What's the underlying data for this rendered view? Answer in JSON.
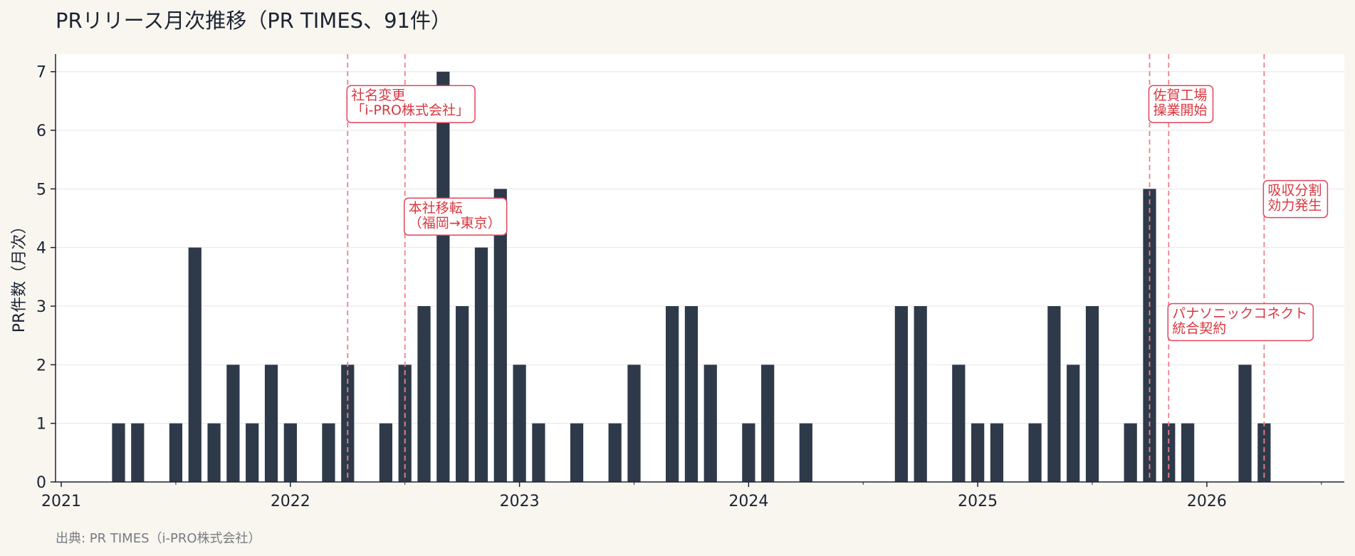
{
  "title": "PRリリース月次推移（PR TIMES、91件）",
  "source": "出典: PR TIMES（i-PRO株式会社）",
  "colors": {
    "bar": "#2e3a4a",
    "event": "#e0455a",
    "background": "#f9f6ef",
    "plot": "#ffffff"
  },
  "chart_data": {
    "type": "bar",
    "title": "PRリリース月次推移（PR TIMES、91件）",
    "xlabel": "",
    "ylabel": "PR件数（月次）",
    "ylim": [
      0,
      7.3
    ],
    "yticks": [
      "0",
      "1",
      "2",
      "3",
      "4",
      "5",
      "6",
      "7"
    ],
    "xticks": [
      "2021",
      "2022",
      "2023",
      "2024",
      "2025",
      "2026"
    ],
    "xlim": [
      "2021-01",
      "2026-08"
    ],
    "grid": "horizontal",
    "categories": [
      "2021-01",
      "2021-02",
      "2021-03",
      "2021-04",
      "2021-05",
      "2021-06",
      "2021-07",
      "2021-08",
      "2021-09",
      "2021-10",
      "2021-11",
      "2021-12",
      "2022-01",
      "2022-02",
      "2022-03",
      "2022-04",
      "2022-05",
      "2022-06",
      "2022-07",
      "2022-08",
      "2022-09",
      "2022-10",
      "2022-11",
      "2022-12",
      "2023-01",
      "2023-02",
      "2023-03",
      "2023-04",
      "2023-05",
      "2023-06",
      "2023-07",
      "2023-08",
      "2023-09",
      "2023-10",
      "2023-11",
      "2023-12",
      "2024-01",
      "2024-02",
      "2024-03",
      "2024-04",
      "2024-05",
      "2024-06",
      "2024-07",
      "2024-08",
      "2024-09",
      "2024-10",
      "2024-11",
      "2024-12",
      "2025-01",
      "2025-02",
      "2025-03",
      "2025-04",
      "2025-05",
      "2025-06",
      "2025-07",
      "2025-08",
      "2025-09",
      "2025-10",
      "2025-11",
      "2025-12",
      "2026-01",
      "2026-02",
      "2026-03",
      "2026-04"
    ],
    "values": [
      0,
      0,
      0,
      1,
      1,
      0,
      1,
      4,
      1,
      2,
      1,
      2,
      1,
      0,
      1,
      2,
      0,
      1,
      2,
      3,
      7,
      3,
      4,
      5,
      2,
      1,
      0,
      1,
      0,
      1,
      2,
      0,
      3,
      3,
      2,
      0,
      1,
      2,
      0,
      1,
      0,
      0,
      0,
      0,
      3,
      3,
      0,
      2,
      1,
      1,
      0,
      1,
      3,
      2,
      3,
      0,
      1,
      5,
      1,
      1,
      0,
      0,
      2,
      1
    ],
    "events": [
      {
        "date": "2022-04",
        "label": [
          "社名変更",
          "「i-PRO株式会社」"
        ]
      },
      {
        "date": "2022-07",
        "label": [
          "本社移転",
          "（福岡→東京）"
        ]
      },
      {
        "date": "2025-10",
        "label": [
          "佐賀工場",
          "操業開始"
        ]
      },
      {
        "date": "2025-11",
        "label": [
          "パナソニックコネクト",
          "統合契約"
        ]
      },
      {
        "date": "2026-04",
        "label": [
          "吸収分割",
          "効力発生"
        ]
      }
    ]
  }
}
